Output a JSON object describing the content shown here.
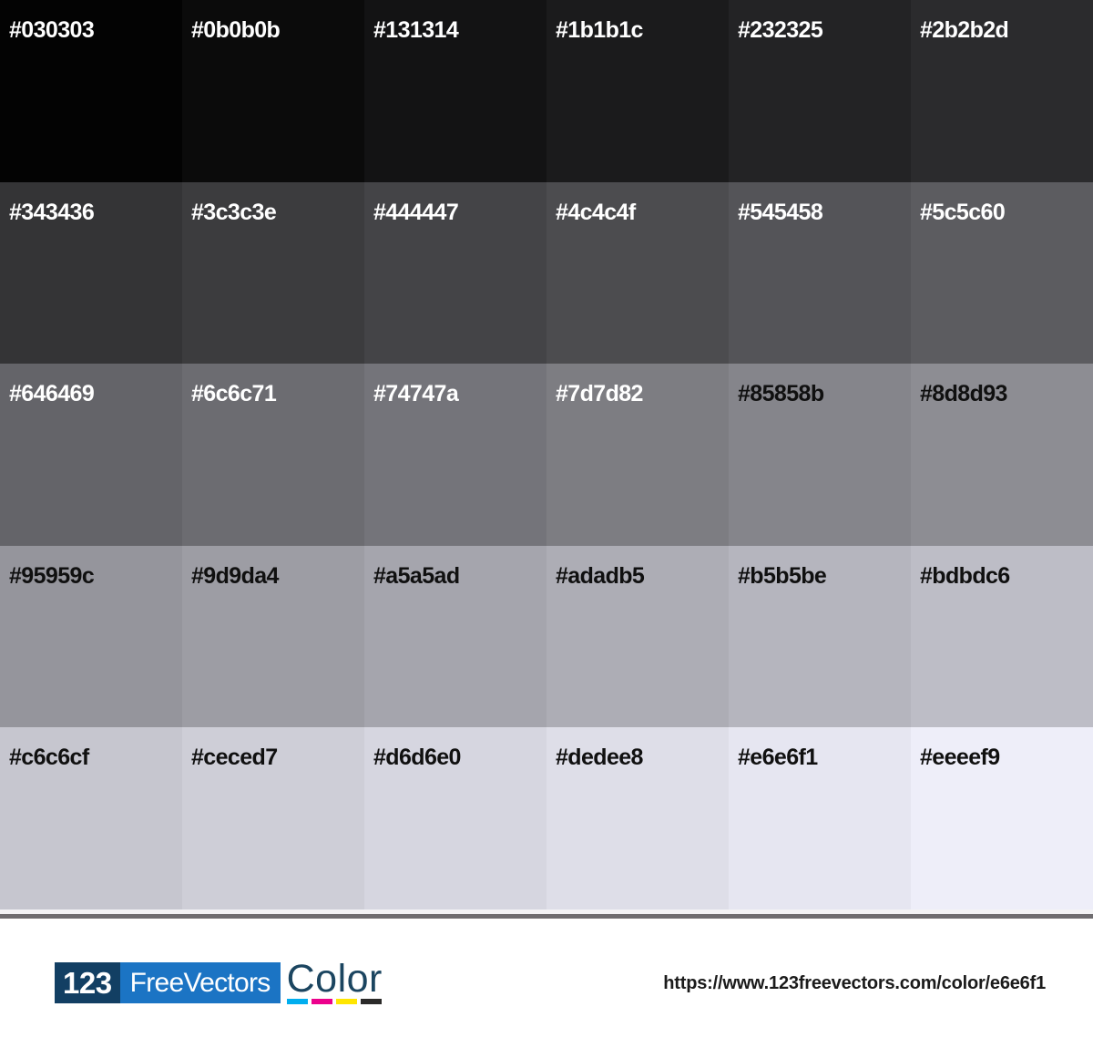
{
  "palette": {
    "cells": [
      {
        "hex": "#030303",
        "label_color": "#ffffff"
      },
      {
        "hex": "#0b0b0b",
        "label_color": "#ffffff"
      },
      {
        "hex": "#131314",
        "label_color": "#ffffff"
      },
      {
        "hex": "#1b1b1c",
        "label_color": "#ffffff"
      },
      {
        "hex": "#232325",
        "label_color": "#ffffff"
      },
      {
        "hex": "#2b2b2d",
        "label_color": "#ffffff"
      },
      {
        "hex": "#343436",
        "label_color": "#ffffff"
      },
      {
        "hex": "#3c3c3e",
        "label_color": "#ffffff"
      },
      {
        "hex": "#444447",
        "label_color": "#ffffff"
      },
      {
        "hex": "#4c4c4f",
        "label_color": "#ffffff"
      },
      {
        "hex": "#545458",
        "label_color": "#ffffff"
      },
      {
        "hex": "#5c5c60",
        "label_color": "#ffffff"
      },
      {
        "hex": "#646469",
        "label_color": "#ffffff"
      },
      {
        "hex": "#6c6c71",
        "label_color": "#ffffff"
      },
      {
        "hex": "#74747a",
        "label_color": "#ffffff"
      },
      {
        "hex": "#7d7d82",
        "label_color": "#ffffff"
      },
      {
        "hex": "#85858b",
        "label_color": "#101010"
      },
      {
        "hex": "#8d8d93",
        "label_color": "#101010"
      },
      {
        "hex": "#95959c",
        "label_color": "#101010"
      },
      {
        "hex": "#9d9da4",
        "label_color": "#101010"
      },
      {
        "hex": "#a5a5ad",
        "label_color": "#101010"
      },
      {
        "hex": "#adadb5",
        "label_color": "#101010"
      },
      {
        "hex": "#b5b5be",
        "label_color": "#101010"
      },
      {
        "hex": "#bdbdc6",
        "label_color": "#101010"
      },
      {
        "hex": "#c6c6cf",
        "label_color": "#101010"
      },
      {
        "hex": "#ceced7",
        "label_color": "#101010"
      },
      {
        "hex": "#d6d6e0",
        "label_color": "#101010"
      },
      {
        "hex": "#dedee8",
        "label_color": "#101010"
      },
      {
        "hex": "#e6e6f1",
        "label_color": "#101010"
      },
      {
        "hex": "#eeeef9",
        "label_color": "#101010"
      }
    ]
  },
  "separator": {
    "light_color": "#f3f3f5",
    "dark_color": "#6f6d70"
  },
  "footer": {
    "background": "#ffffff",
    "logo": {
      "number": "123",
      "number_bg": "#123f63",
      "number_color": "#ffffff",
      "name": "FreeVectors",
      "name_bg": "#1b74c4",
      "name_color": "#ffffff",
      "word": "Color",
      "word_color": "#1b4560",
      "cmyk_bars": [
        {
          "name": "cyan-bar",
          "color": "#00aeef"
        },
        {
          "name": "magenta-bar",
          "color": "#ec008c"
        },
        {
          "name": "yellow-bar",
          "color": "#ffe600"
        },
        {
          "name": "black-bar",
          "color": "#2b2a29"
        }
      ]
    },
    "url": "https://www.123freevectors.com/color/e6e6f1",
    "url_color": "#1b1b1b"
  }
}
